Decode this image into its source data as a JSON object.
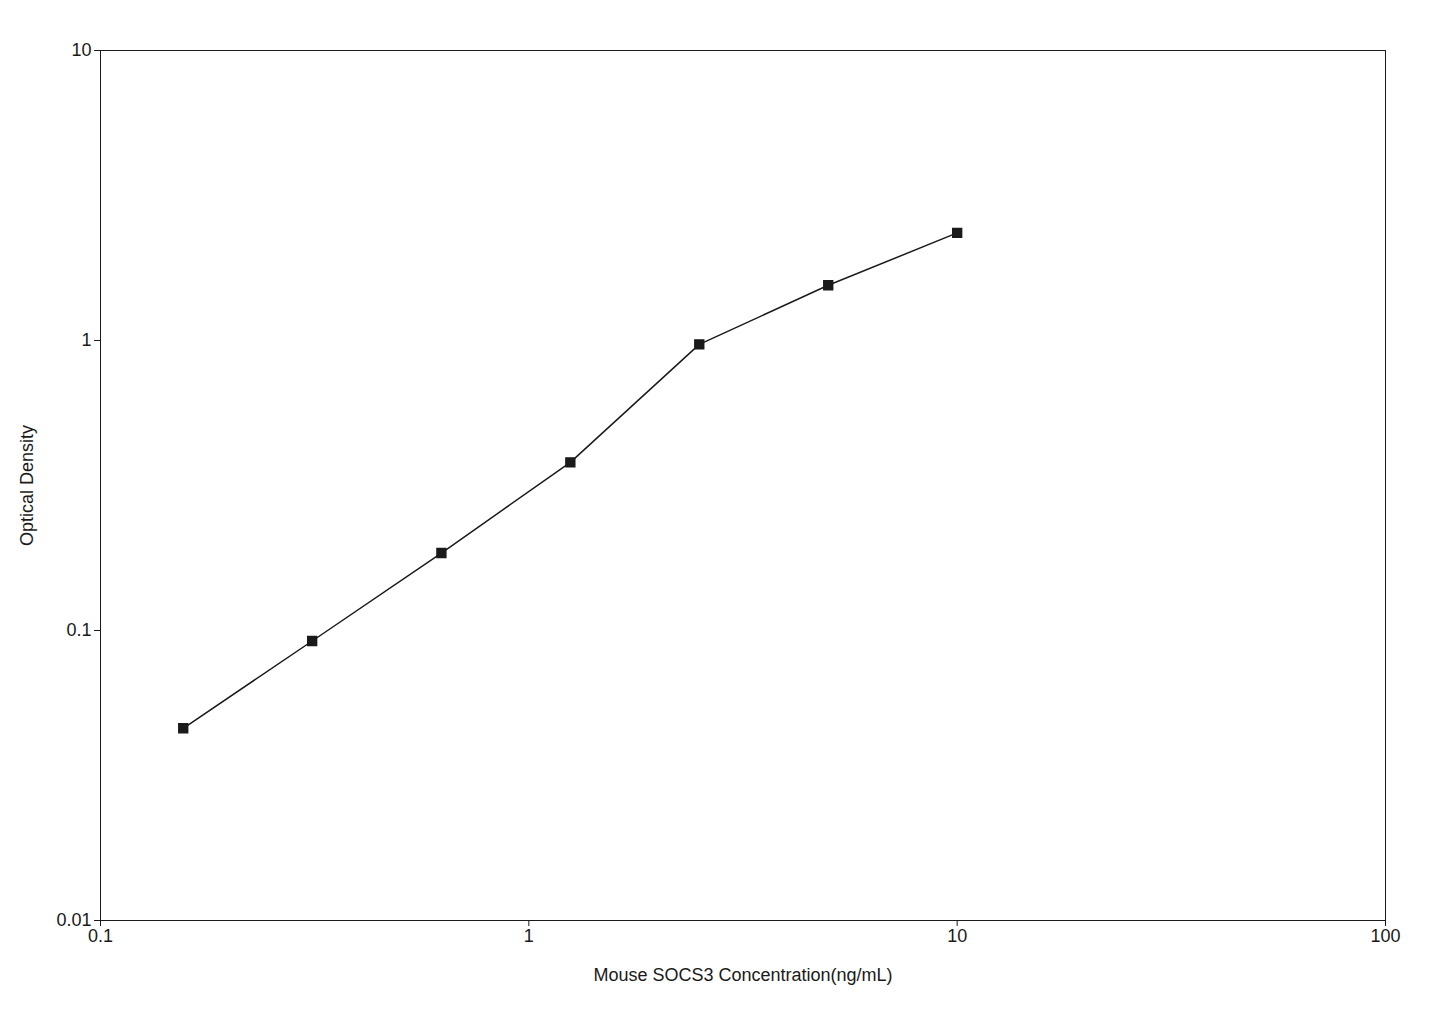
{
  "chart_data": {
    "type": "line",
    "x": [
      0.156,
      0.312,
      0.625,
      1.25,
      2.5,
      5.0,
      10.0
    ],
    "values": [
      0.046,
      0.092,
      0.185,
      0.38,
      0.97,
      1.55,
      2.35
    ],
    "xlabel": "Mouse SOCS3 Concentration(ng/mL)",
    "ylabel": "Optical Density",
    "xlim": [
      0.1,
      100
    ],
    "ylim": [
      0.01,
      10
    ],
    "xticks": [
      0.1,
      1,
      10,
      100
    ],
    "yticks": [
      0.01,
      0.1,
      1,
      10
    ],
    "log": true,
    "grid": false,
    "color": "#1a1a1a",
    "marker": "square"
  }
}
